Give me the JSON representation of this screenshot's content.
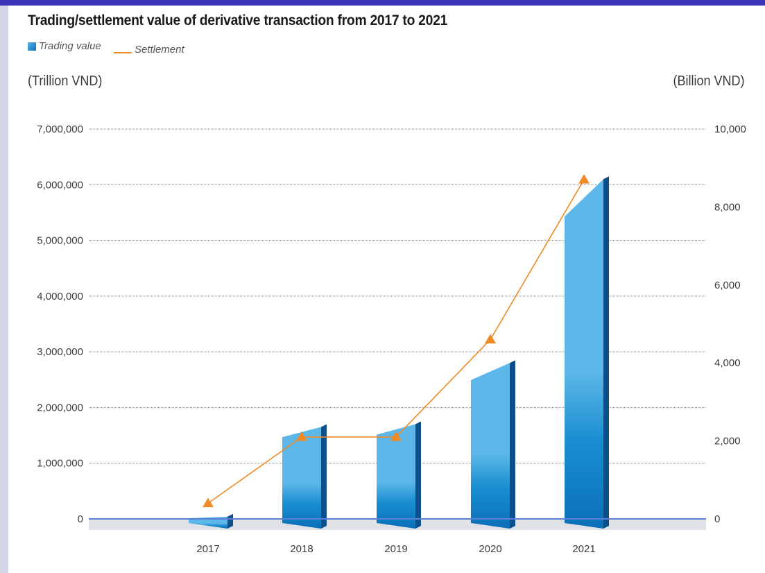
{
  "chart_data": {
    "type": "bar",
    "title": "Trading/settlement value of derivative transaction from 2017 to 2021",
    "categories": [
      "2017",
      "2018",
      "2019",
      "2020",
      "2021"
    ],
    "series": [
      {
        "name": "Trading value",
        "type": "bar",
        "axis": "left",
        "values": [
          40000,
          1650000,
          1700000,
          2800000,
          6100000
        ]
      },
      {
        "name": "Settlement",
        "type": "line",
        "axis": "right",
        "values": [
          400,
          2100,
          2100,
          4600,
          8700
        ]
      }
    ],
    "ylabel_left": "(Trillion VND)",
    "ylabel_right": "(Billion VND)",
    "ylim_left": [
      0,
      7000000
    ],
    "ylim_right": [
      0,
      10000
    ],
    "yticks_left": [
      "0",
      "1,000,000",
      "2,000,000",
      "3,000,000",
      "4,000,000",
      "5,000,000",
      "6,000,000",
      "7,000,000"
    ],
    "yticks_right": [
      "0",
      "2,000",
      "4,000",
      "6,000",
      "8,000",
      "10,000"
    ],
    "grid": true,
    "legend": "top-left",
    "colors": {
      "bar_light": "#5db7e8",
      "bar_dark": "#0a6fb8",
      "bar_side": "#0d4f8a",
      "line": "#f08a24",
      "baseline": "#5a7fd6",
      "floor": "#dfe3e8"
    }
  }
}
